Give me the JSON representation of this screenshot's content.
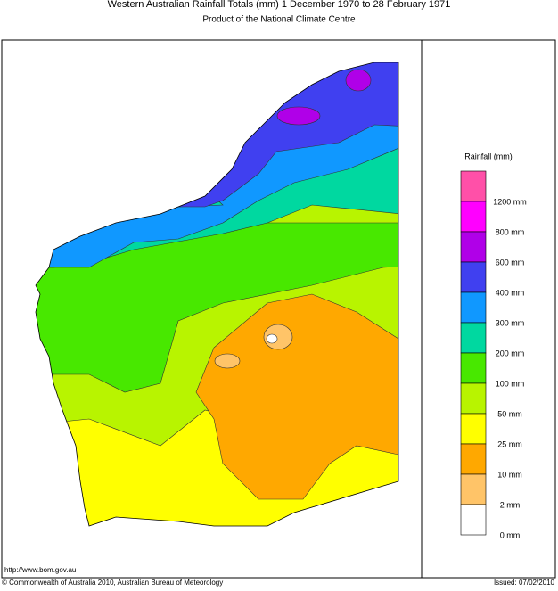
{
  "header": {
    "title": "Western Australian Rainfall Totals (mm) 1 December 1970 to 28 February 1971",
    "subtitle": "Product of the National Climate Centre"
  },
  "legend": {
    "title": "Rainfall (mm)",
    "items": [
      {
        "label": "1200 mm",
        "color": "#ff50a8"
      },
      {
        "label": "800 mm",
        "color": "#ff00ff"
      },
      {
        "label": "600 mm",
        "color": "#b000e8"
      },
      {
        "label": "400 mm",
        "color": "#4040f0"
      },
      {
        "label": "300 mm",
        "color": "#1098ff"
      },
      {
        "label": "200 mm",
        "color": "#00d8a0"
      },
      {
        "label": "100 mm",
        "color": "#48e800"
      },
      {
        "label": "50 mm",
        "color": "#b8f400"
      },
      {
        "label": "25 mm",
        "color": "#ffff00"
      },
      {
        "label": "10 mm",
        "color": "#ffa800"
      },
      {
        "label": "2 mm",
        "color": "#ffc468"
      },
      {
        "label": "0 mm",
        "color": "#ffffff"
      }
    ]
  },
  "footer": {
    "url": "http://www.bom.gov.au",
    "copyright": "© Commonwealth of Australia 2010, Australian Bureau of Meteorology",
    "issued": "Issued: 07/02/2010"
  }
}
